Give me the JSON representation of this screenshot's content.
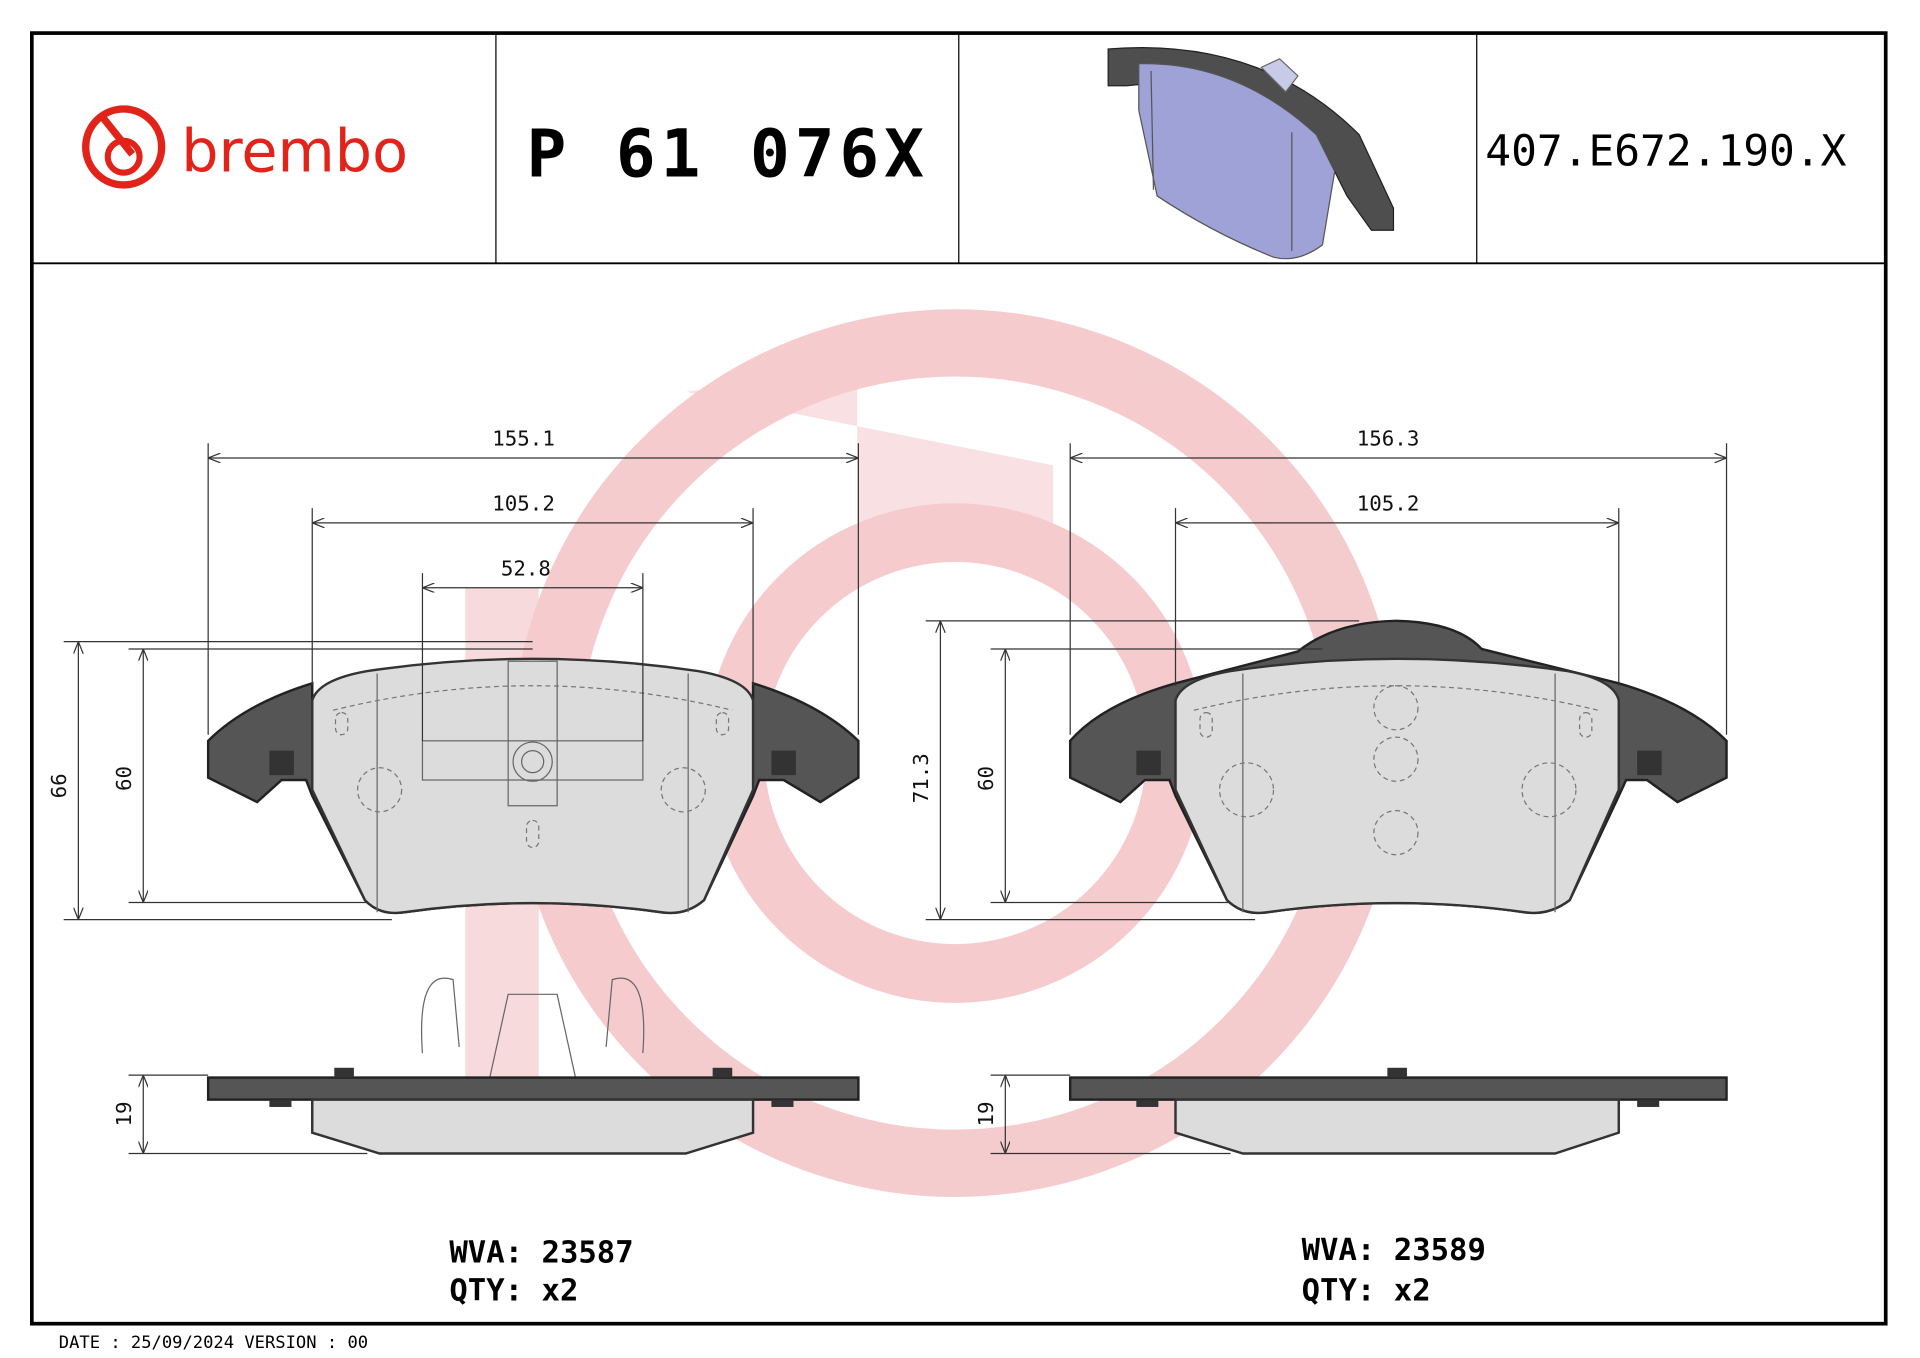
{
  "header": {
    "logo_text": "brembo",
    "part_number": "P 61 076X",
    "reference": "407.E672.190.X",
    "product_image": "brake-pad-3d-render"
  },
  "colors": {
    "brand": "#e2231a",
    "watermark": "#f4c6c9",
    "plate": "#555555",
    "friction": "#dcdcdc",
    "render": "#9ea2d6"
  },
  "left_pad": {
    "dims": {
      "width_total": "155.1",
      "width_mid": "105.2",
      "width_inner": "52.8",
      "height_total": "66",
      "height_friction": "60",
      "thickness": "19"
    },
    "wva": "WVA: 23587",
    "qty": "QTY: x2"
  },
  "right_pad": {
    "dims": {
      "width_total": "156.3",
      "width_mid": "105.2",
      "height_total": "71.3",
      "height_friction": "60",
      "thickness": "19"
    },
    "wva": "WVA: 23589",
    "qty": "QTY: x2"
  },
  "footer": {
    "text": "DATE : 25/09/2024 VERSION : 00"
  }
}
